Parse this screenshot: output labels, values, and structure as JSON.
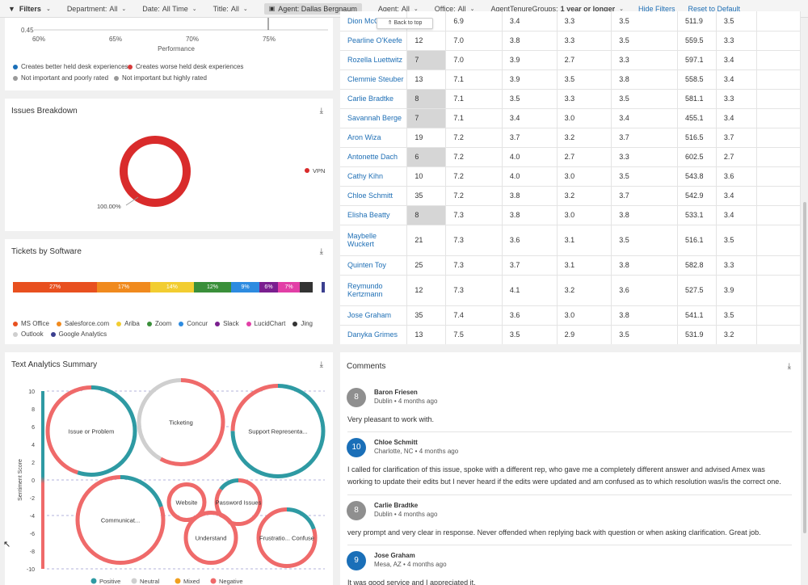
{
  "filterbar": {
    "filters_label": "Filters",
    "department_label": "Department:",
    "department_value": "All",
    "date_label": "Date:",
    "date_value": "All Time",
    "title_label": "Title:",
    "title_value": "All",
    "agent_chip": "Agent: Dallas Bergnaum",
    "agent_label": "Agent:",
    "agent_value": "All",
    "office_label": "Office:",
    "office_value": "All",
    "tenure_label": "AgentTenureGroups:",
    "tenure_value": "1 year or longer",
    "hide_filters": "Hide Filters",
    "reset": "Reset to Default"
  },
  "back_to_top": "⇑ Back to top",
  "performance": {
    "y_tick": "0.45",
    "x_ticks": [
      "60%",
      "65%",
      "70%",
      "75%"
    ],
    "x_label": "Performance",
    "legend": [
      {
        "label": "Creates better held desk experiences",
        "color": "#1a6fb8"
      },
      {
        "label": "Creates worse held desk experiences",
        "color": "#d63a3a"
      },
      {
        "label": "Not important and poorly rated",
        "color": "#9a9a9a"
      },
      {
        "label": "Not important but highly rated",
        "color": "#9a9a9a"
      }
    ]
  },
  "issues": {
    "title": "Issues Breakdown",
    "slice_label": "100.00%",
    "legend_label": "VPN",
    "color": "#d92b2b"
  },
  "tickets": {
    "title": "Tickets by Software",
    "segments": [
      {
        "name": "MS Office",
        "pct": 27,
        "label": "27%",
        "color": "#e8501f"
      },
      {
        "name": "Salesforce.com",
        "pct": 17,
        "label": "17%",
        "color": "#f08a1e"
      },
      {
        "name": "Ariba",
        "pct": 14,
        "label": "14%",
        "color": "#f2cd31"
      },
      {
        "name": "Zoom",
        "pct": 12,
        "label": "12%",
        "color": "#3a8f3a"
      },
      {
        "name": "Concur",
        "pct": 9,
        "label": "9%",
        "color": "#2d8be0"
      },
      {
        "name": "Slack",
        "pct": 6,
        "label": "6%",
        "color": "#7a1f8f"
      },
      {
        "name": "LucidChart",
        "pct": 7,
        "label": "7%",
        "color": "#e23fa6"
      },
      {
        "name": "Jing",
        "pct": 4,
        "label": "",
        "color": "#333333"
      },
      {
        "name": "Outlook",
        "pct": 3,
        "label": "",
        "color": "#cfcfcf"
      },
      {
        "name": "Google Analytics",
        "pct": 1,
        "label": "",
        "color": "#3b3f8f"
      }
    ]
  },
  "text_analytics": {
    "title": "Text Analytics Summary",
    "y_axis_label": "Sentiment Score",
    "y_ticks": [
      "10",
      "8",
      "6",
      "4",
      "2",
      "0",
      "-2",
      "-4",
      "-6",
      "-8",
      "-10"
    ],
    "legend": [
      {
        "label": "Positive",
        "color": "#2e9aa3"
      },
      {
        "label": "Neutral",
        "color": "#cfcfcf"
      },
      {
        "label": "Mixed",
        "color": "#f0a020"
      },
      {
        "label": "Negative",
        "color": "#ef6a6a"
      }
    ],
    "bubbles": [
      {
        "label": "Issue or Problem",
        "score": 5.5,
        "pos": 0.3
      },
      {
        "label": "Ticketing",
        "score": 6.5,
        "pos": 0.25
      },
      {
        "label": "Support Representa...",
        "score": 5.5,
        "pos": 0.55
      },
      {
        "label": "Communicat...",
        "score": -4.5,
        "pos": 0.3
      },
      {
        "label": "Website",
        "score": -2.5,
        "pos": 0.2
      },
      {
        "label": "Password Issues",
        "score": -2.5,
        "pos": 0.3
      },
      {
        "label": "Understand",
        "score": -6.5,
        "pos": 0.15
      },
      {
        "label": "Frustratio... Confuse",
        "score": -6.5,
        "pos": 0.2
      }
    ]
  },
  "table": {
    "rows": [
      {
        "name": "Dion McC...",
        "v": [
          "",
          "6.9",
          "3.4",
          "3.3",
          "3.5",
          "511.9",
          "3.5"
        ],
        "hl": false
      },
      {
        "name": "Pearline O'Keefe",
        "v": [
          "12",
          "7.0",
          "3.8",
          "3.3",
          "3.5",
          "559.5",
          "3.3"
        ],
        "hl": false
      },
      {
        "name": "Rozella Luettwitz",
        "v": [
          "7",
          "7.0",
          "3.9",
          "2.7",
          "3.3",
          "597.1",
          "3.4"
        ],
        "hl": true
      },
      {
        "name": "Clemmie Steuber",
        "v": [
          "13",
          "7.1",
          "3.9",
          "3.5",
          "3.8",
          "558.5",
          "3.4"
        ],
        "hl": false
      },
      {
        "name": "Carlie Bradtke",
        "v": [
          "8",
          "7.1",
          "3.5",
          "3.3",
          "3.5",
          "581.1",
          "3.3"
        ],
        "hl": true
      },
      {
        "name": "Savannah Berge",
        "v": [
          "7",
          "7.1",
          "3.4",
          "3.0",
          "3.4",
          "455.1",
          "3.4"
        ],
        "hl": true
      },
      {
        "name": "Aron Wiza",
        "v": [
          "19",
          "7.2",
          "3.7",
          "3.2",
          "3.7",
          "516.5",
          "3.7"
        ],
        "hl": false
      },
      {
        "name": "Antonette Dach",
        "v": [
          "6",
          "7.2",
          "4.0",
          "2.7",
          "3.3",
          "602.5",
          "2.7"
        ],
        "hl": true
      },
      {
        "name": "Cathy Kihn",
        "v": [
          "10",
          "7.2",
          "4.0",
          "3.0",
          "3.5",
          "543.8",
          "3.6"
        ],
        "hl": false
      },
      {
        "name": "Chloe Schmitt",
        "v": [
          "35",
          "7.2",
          "3.8",
          "3.2",
          "3.7",
          "542.9",
          "3.4"
        ],
        "hl": false
      },
      {
        "name": "Elisha Beatty",
        "v": [
          "8",
          "7.3",
          "3.8",
          "3.0",
          "3.8",
          "533.1",
          "3.4"
        ],
        "hl": true
      },
      {
        "name": "Maybelle",
        "name2": "Wuckert",
        "v": [
          "21",
          "7.3",
          "3.6",
          "3.1",
          "3.5",
          "516.1",
          "3.5"
        ],
        "hl": false
      },
      {
        "name": "Quinten Toy",
        "v": [
          "25",
          "7.3",
          "3.7",
          "3.1",
          "3.8",
          "582.8",
          "3.3"
        ],
        "hl": false
      },
      {
        "name": "Reymundo",
        "name2": "Kertzmann",
        "v": [
          "12",
          "7.3",
          "4.1",
          "3.2",
          "3.6",
          "527.5",
          "3.9"
        ],
        "hl": false
      },
      {
        "name": "Jose Graham",
        "v": [
          "35",
          "7.4",
          "3.6",
          "3.0",
          "3.8",
          "541.1",
          "3.5"
        ],
        "hl": false
      },
      {
        "name": "Danyka Grimes",
        "v": [
          "13",
          "7.5",
          "3.5",
          "2.9",
          "3.5",
          "531.9",
          "3.2"
        ],
        "hl": false
      }
    ]
  },
  "comments": {
    "title": "Comments",
    "items": [
      {
        "score": "8",
        "name": "Baron Friesen",
        "meta": "Dublin • 4 months ago",
        "text": "Very pleasant to work with.",
        "color": "#8f8f8f"
      },
      {
        "score": "10",
        "name": "Chloe Schmitt",
        "meta": "Charlotte, NC • 4 months ago",
        "text": "I called for clarification of this issue, spoke with a different rep, who gave me a completely different answer and advised Amex was working to update their edits but I never heard if the edits were updated and am confused as to which resolution was/is the correct one.",
        "color": "#1a6fb8"
      },
      {
        "score": "8",
        "name": "Carlie Bradtke",
        "meta": "Dublin • 4 months ago",
        "text": "very prompt and very clear in response. Never offended when replying back with question or when asking clarification. Great job.",
        "color": "#8f8f8f"
      },
      {
        "score": "9",
        "name": "Jose Graham",
        "meta": "Mesa, AZ • 4 months ago",
        "text": "It was good service and I appreciated it.",
        "color": "#1a6fb8"
      }
    ]
  }
}
